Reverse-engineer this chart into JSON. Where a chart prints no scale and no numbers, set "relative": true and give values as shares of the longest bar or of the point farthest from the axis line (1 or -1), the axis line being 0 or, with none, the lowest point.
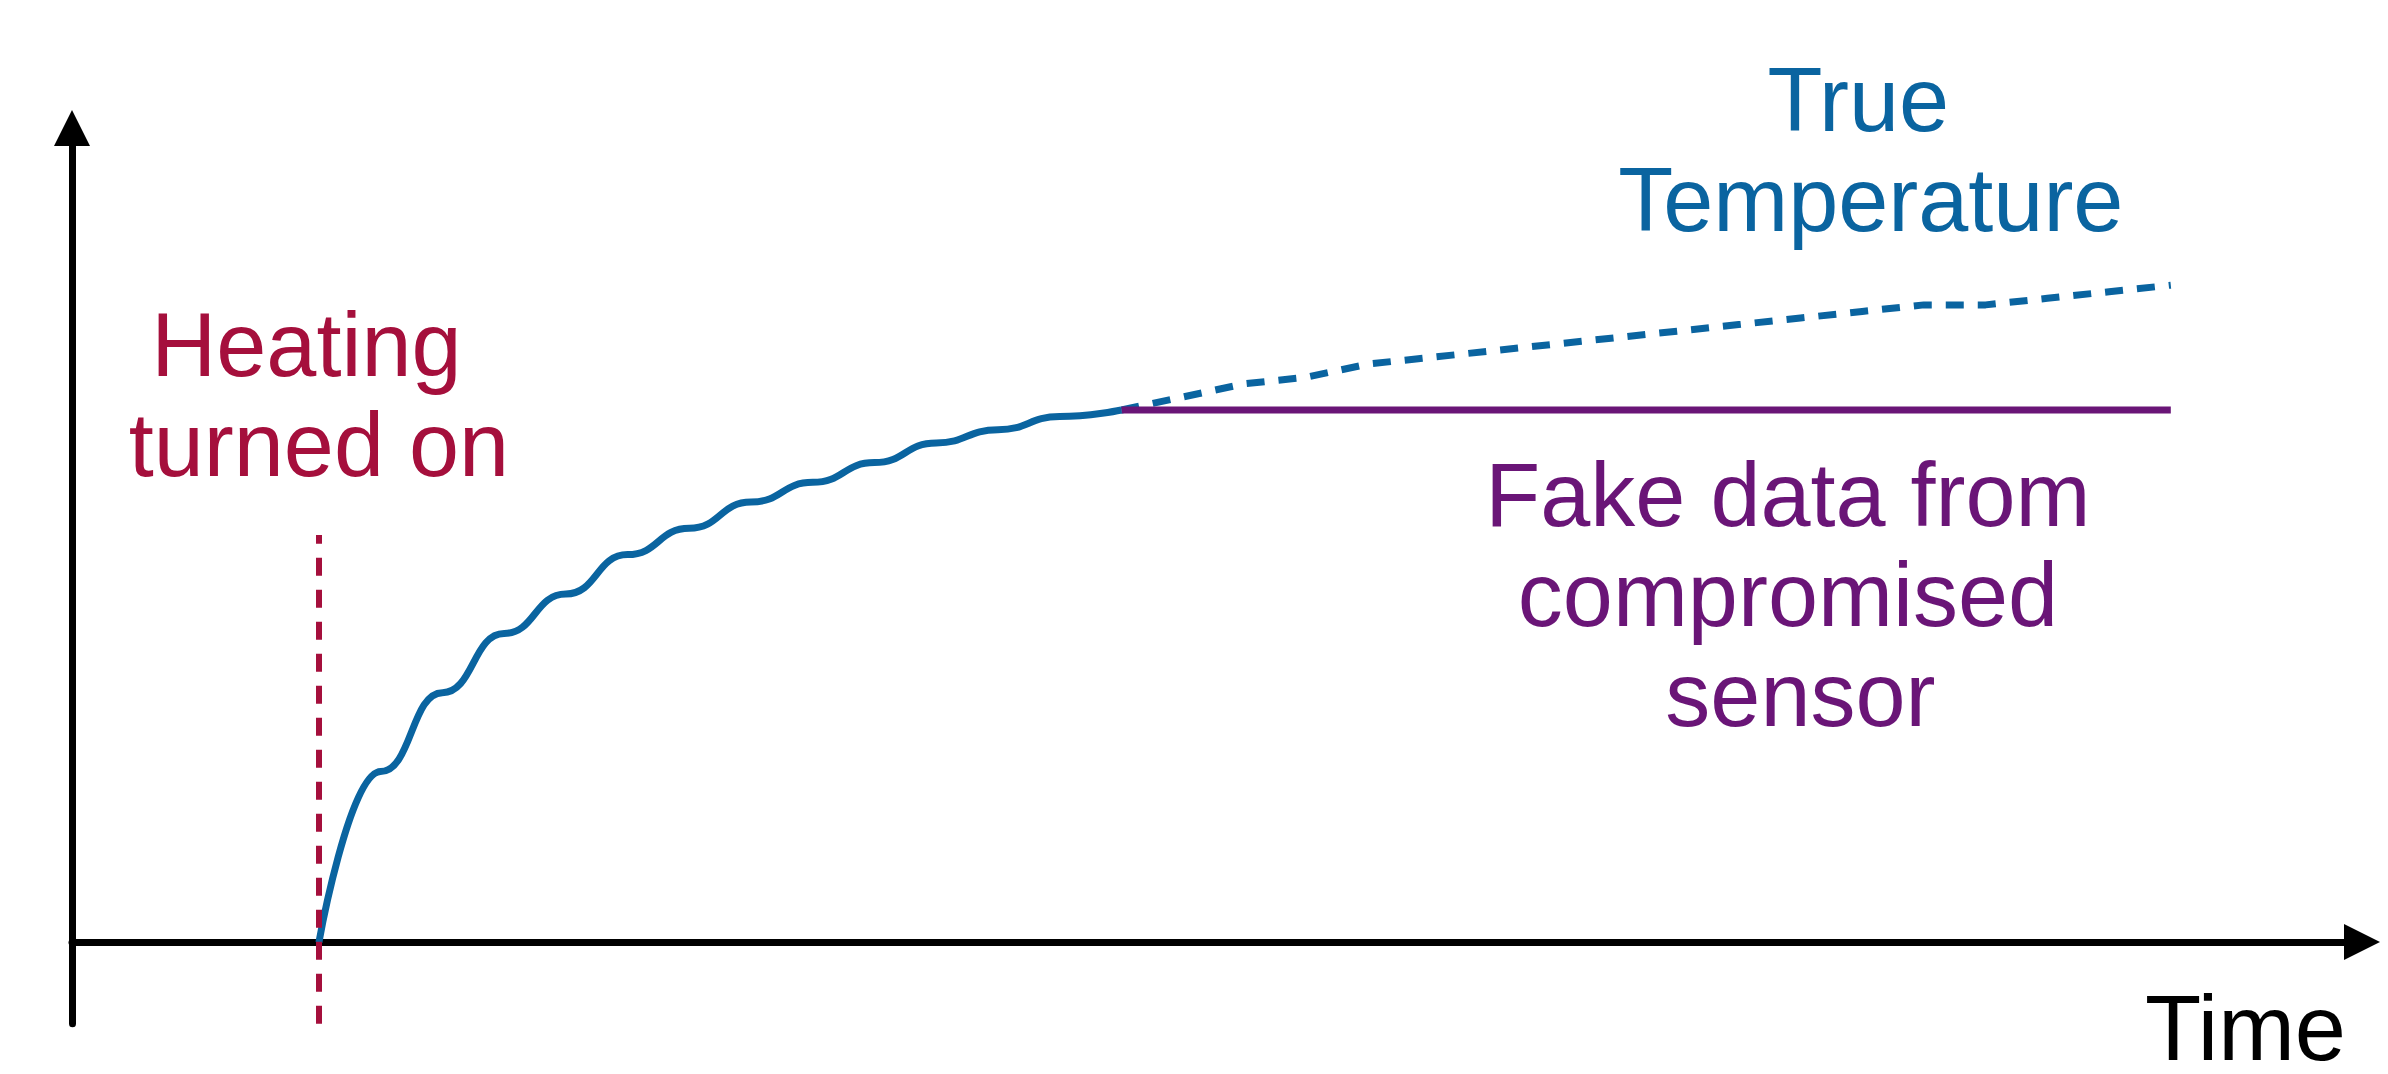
{
  "chart_data": {
    "type": "line",
    "relative": true,
    "xlabel": "Time",
    "categories": [
      null,
      null,
      null,
      null,
      null,
      null,
      null,
      null,
      null,
      null,
      null,
      null,
      null,
      null,
      null,
      null,
      null,
      null,
      null,
      null,
      null,
      null,
      null,
      null,
      null,
      null,
      null,
      null,
      null,
      null,
      null,
      null,
      null,
      null,
      null,
      null,
      null,
      null
    ],
    "series": [
      {
        "color": "#0a64a0",
        "line_style": "solid",
        "values": [
          null,
          null,
          null,
          null,
          0,
          0.26,
          0.38,
          0.47,
          0.53,
          0.59,
          0.63,
          0.67,
          0.7,
          0.73,
          0.76,
          0.78,
          0.8,
          0.81,
          null,
          null,
          null,
          null,
          null,
          null,
          null,
          null,
          null,
          null,
          null,
          null,
          null,
          null,
          null,
          null,
          null,
          null,
          null,
          null
        ]
      },
      {
        "name": "True Temperature",
        "color": "#0a64a0",
        "line_style": "dashed",
        "values": [
          null,
          null,
          null,
          null,
          null,
          null,
          null,
          null,
          null,
          null,
          null,
          null,
          null,
          null,
          null,
          null,
          null,
          0.81,
          0.83,
          0.85,
          0.86,
          0.88,
          0.89,
          0.9,
          0.91,
          0.92,
          0.93,
          0.94,
          0.95,
          0.96,
          0.97,
          0.97,
          0.98,
          0.99,
          1,
          null,
          null,
          null
        ]
      },
      {
        "name": "Fake data from compromised sensor",
        "color": "#6a1577",
        "line_style": "solid",
        "values": [
          null,
          null,
          null,
          null,
          null,
          null,
          null,
          null,
          null,
          null,
          null,
          null,
          null,
          null,
          null,
          null,
          null,
          0.81,
          0.81,
          0.81,
          0.81,
          0.81,
          0.81,
          0.81,
          0.81,
          0.81,
          0.81,
          0.81,
          0.81,
          0.81,
          0.81,
          0.81,
          0.81,
          0.81,
          0.81,
          null,
          null,
          null
        ]
      }
    ],
    "annotations": [
      "Heating turned on"
    ],
    "legend": false,
    "grid": false,
    "marker": "none"
  }
}
